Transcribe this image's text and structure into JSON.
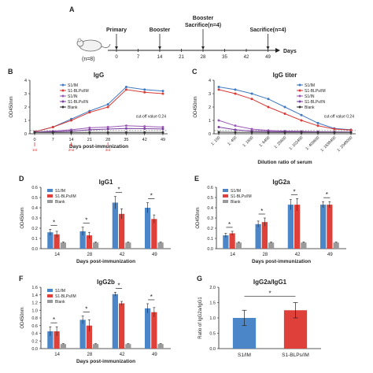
{
  "figure": {
    "timeline": {
      "panel_letter": "A",
      "group_label": "(n=8)",
      "events": [
        "Primary",
        "Booster",
        "Booster",
        "Sacrifice(n=4)",
        "Sacrifice(n=4)"
      ],
      "ticks": [
        "0",
        "7",
        "14",
        "21",
        "28",
        "35",
        "42",
        "49"
      ],
      "axis_label": "Days"
    }
  },
  "chart_data": [
    {
      "id": "B",
      "panel_letter": "B",
      "type": "line",
      "title": "IgG",
      "xlabel": "Days post-immunization",
      "ylabel": "OD450nm",
      "x": [
        0,
        7,
        14,
        21,
        28,
        35,
        42,
        49
      ],
      "xticks": [
        "0",
        "7",
        "14",
        "21",
        "28",
        "35",
        "42",
        "49"
      ],
      "ylim": [
        0,
        4
      ],
      "yticks": [
        0,
        1,
        2,
        3,
        4
      ],
      "cutoff_label": "cut-off value 0.24",
      "cutoff": 0.24,
      "injections": [
        0,
        14,
        28
      ],
      "injection_labels": [
        "1st",
        "2nd",
        "3rd"
      ],
      "series": [
        {
          "name": "S1/IM",
          "color": "#3f78c2",
          "values": [
            0.15,
            0.5,
            1.1,
            1.7,
            2.2,
            3.5,
            3.3,
            3.2
          ]
        },
        {
          "name": "S1-BLPs/IM",
          "color": "#d93a36",
          "values": [
            0.15,
            0.5,
            1.0,
            1.6,
            2.0,
            3.3,
            3.1,
            3.0
          ]
        },
        {
          "name": "S1/IN",
          "color": "#9b59b6",
          "values": [
            0.12,
            0.2,
            0.3,
            0.45,
            0.5,
            0.6,
            0.55,
            0.5
          ]
        },
        {
          "name": "S1-BLPs/IN",
          "color": "#7a3fa0",
          "values": [
            0.12,
            0.15,
            0.2,
            0.3,
            0.35,
            0.4,
            0.38,
            0.36
          ]
        },
        {
          "name": "Blank",
          "color": "#333333",
          "values": [
            0.1,
            0.1,
            0.1,
            0.1,
            0.1,
            0.1,
            0.1,
            0.1
          ]
        }
      ]
    },
    {
      "id": "C",
      "panel_letter": "C",
      "type": "line",
      "title": "IgG titer",
      "xlabel": "Dilution ratio of serum",
      "ylabel": "OD450nm",
      "categories": [
        "1: 100",
        "1: 400",
        "1: 1600",
        "1: 6400",
        "1: 25600",
        "1: 102400",
        "1: 409600",
        "1: 1638400",
        "1: 2048000"
      ],
      "ylim": [
        0,
        4
      ],
      "yticks": [
        0,
        1,
        2,
        3,
        4
      ],
      "cutoff_label": "cut-off value 0.24",
      "cutoff": 0.24,
      "series": [
        {
          "name": "S1/IM",
          "color": "#3f78c2",
          "values": [
            3.5,
            3.3,
            3.0,
            2.6,
            2.0,
            1.4,
            0.8,
            0.4,
            0.3
          ]
        },
        {
          "name": "S1-BLPs/IM",
          "color": "#d93a36",
          "values": [
            3.3,
            3.0,
            2.6,
            2.0,
            1.5,
            1.0,
            0.6,
            0.35,
            0.28
          ]
        },
        {
          "name": "S1/IN",
          "color": "#9b59b6",
          "values": [
            1.0,
            0.6,
            0.35,
            0.25,
            0.2,
            0.18,
            0.15,
            0.14,
            0.13
          ]
        },
        {
          "name": "S1-BLPs/IN",
          "color": "#7a3fa0",
          "values": [
            0.5,
            0.3,
            0.2,
            0.18,
            0.15,
            0.14,
            0.13,
            0.12,
            0.12
          ]
        },
        {
          "name": "Blank",
          "color": "#333333",
          "values": [
            0.12,
            0.11,
            0.11,
            0.1,
            0.1,
            0.1,
            0.1,
            0.1,
            0.1
          ]
        }
      ]
    },
    {
      "id": "D",
      "panel_letter": "D",
      "type": "bar",
      "title": "IgG1",
      "xlabel": "Days post-immunization",
      "ylabel": "OD450nm",
      "categories": [
        "14",
        "28",
        "42",
        "49"
      ],
      "ylim": [
        0,
        0.6
      ],
      "yticks": [
        0,
        0.1,
        0.2,
        0.3,
        0.4,
        0.5,
        0.6
      ],
      "ytick_labels": [
        "0.0",
        "0.1",
        "0.2",
        "0.3",
        "0.4",
        "0.5",
        "0.6"
      ],
      "series": [
        {
          "name": "S1/IM",
          "color": "#4a86c8",
          "values": [
            0.16,
            0.17,
            0.45,
            0.4
          ],
          "errors": [
            0.03,
            0.04,
            0.06,
            0.05
          ]
        },
        {
          "name": "S1-BLPs/IM",
          "color": "#e0403a",
          "values": [
            0.14,
            0.13,
            0.34,
            0.29
          ],
          "errors": [
            0.03,
            0.03,
            0.05,
            0.04
          ]
        },
        {
          "name": "Blank",
          "color": "#9a9a9a",
          "values": [
            0.06,
            0.06,
            0.06,
            0.06
          ],
          "errors": [
            0.005,
            0.005,
            0.005,
            0.005
          ]
        }
      ],
      "significance": [
        "*",
        "*",
        "*",
        "*"
      ]
    },
    {
      "id": "E",
      "panel_letter": "E",
      "type": "bar",
      "title": "IgG2a",
      "xlabel": "Days post-immunization",
      "ylabel": "OD450nm",
      "categories": [
        "14",
        "28",
        "42",
        "49"
      ],
      "ylim": [
        0,
        0.6
      ],
      "yticks": [
        0,
        0.1,
        0.2,
        0.3,
        0.4,
        0.5,
        0.6
      ],
      "ytick_labels": [
        "0.0",
        "0.1",
        "0.2",
        "0.3",
        "0.4",
        "0.5",
        "0.6"
      ],
      "series": [
        {
          "name": "S1/IM",
          "color": "#4a86c8",
          "values": [
            0.13,
            0.24,
            0.43,
            0.43
          ],
          "errors": [
            0.02,
            0.03,
            0.05,
            0.03
          ]
        },
        {
          "name": "S1-BLPs/IM",
          "color": "#e0403a",
          "values": [
            0.15,
            0.26,
            0.43,
            0.43
          ],
          "errors": [
            0.02,
            0.04,
            0.06,
            0.03
          ]
        },
        {
          "name": "Blank",
          "color": "#9a9a9a",
          "values": [
            0.06,
            0.06,
            0.06,
            0.06
          ],
          "errors": [
            0.005,
            0.005,
            0.005,
            0.005
          ]
        }
      ],
      "significance": [
        "*",
        "*",
        "*",
        "*"
      ]
    },
    {
      "id": "F",
      "panel_letter": "F",
      "type": "bar",
      "title": "IgG2b",
      "xlabel": "Days post-immunization",
      "ylabel": "OD450nm",
      "categories": [
        "14",
        "28",
        "42",
        "49"
      ],
      "ylim": [
        0,
        1.6
      ],
      "yticks": [
        0,
        0.2,
        0.4,
        0.6,
        0.8,
        1.0,
        1.2,
        1.4,
        1.6
      ],
      "ytick_labels": [
        "0.0",
        "0.2",
        "0.4",
        "0.6",
        "0.8",
        "1.0",
        "1.2",
        "1.4",
        "1.6"
      ],
      "series": [
        {
          "name": "S1/IM",
          "color": "#4a86c8",
          "values": [
            0.45,
            0.75,
            1.42,
            1.05
          ],
          "errors": [
            0.12,
            0.1,
            0.05,
            0.12
          ]
        },
        {
          "name": "S1-BLPs/IM",
          "color": "#e0403a",
          "values": [
            0.45,
            0.6,
            1.18,
            0.95
          ],
          "errors": [
            0.12,
            0.15,
            0.05,
            0.12
          ]
        },
        {
          "name": "Blank",
          "color": "#9a9a9a",
          "values": [
            0.12,
            0.12,
            0.12,
            0.12
          ],
          "errors": [
            0.01,
            0.01,
            0.01,
            0.01
          ]
        }
      ],
      "significance": [
        "*",
        "*",
        "*",
        "*"
      ]
    },
    {
      "id": "G",
      "panel_letter": "G",
      "type": "bar",
      "title": "IgG2a/IgG1",
      "xlabel": "",
      "ylabel": "Ratio of IgG2a/IgG1",
      "categories": [
        "S1/IM",
        "S1-BLPs/IM"
      ],
      "ylim": [
        0,
        2.0
      ],
      "yticks": [
        0,
        0.5,
        1.0,
        1.5,
        2.0
      ],
      "ytick_labels": [
        "0.0",
        "0.5",
        "1.0",
        "1.5",
        "2.0"
      ],
      "values": [
        1.0,
        1.25
      ],
      "errors": [
        0.25,
        0.25
      ],
      "colors": [
        "#4a86c8",
        "#e0403a"
      ],
      "significance": [
        "*"
      ]
    }
  ]
}
